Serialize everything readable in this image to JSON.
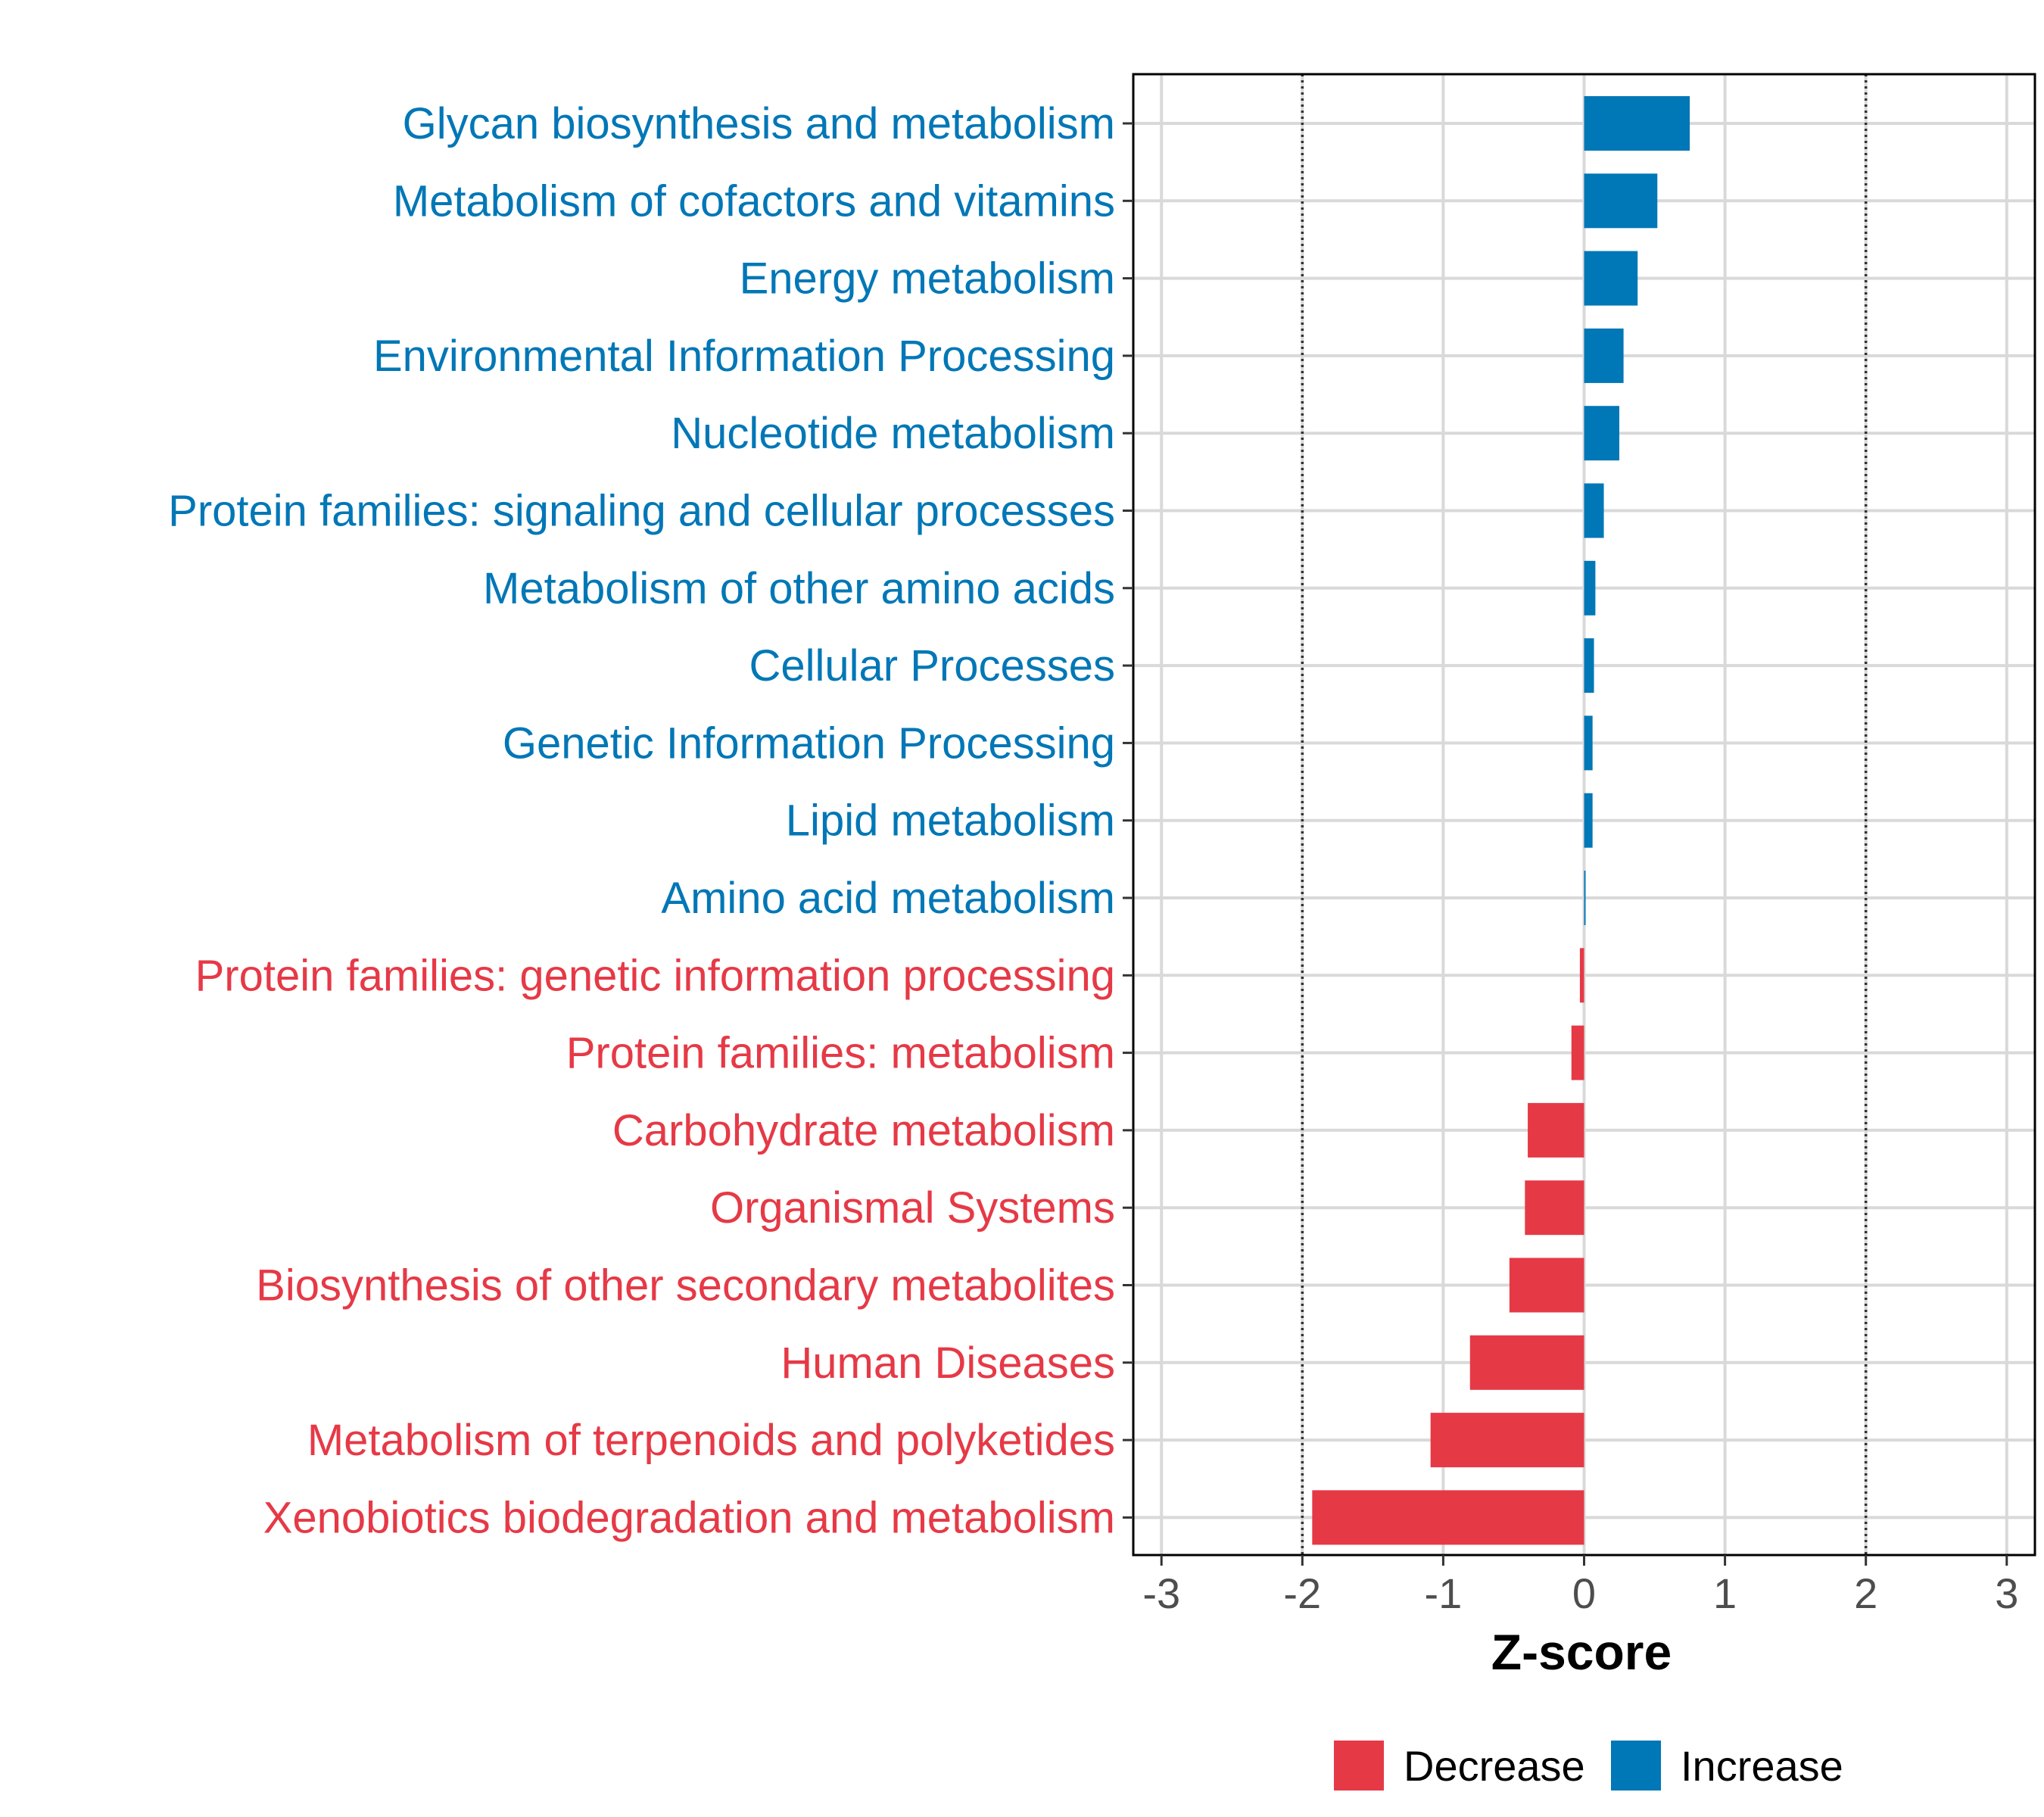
{
  "chart_data": {
    "type": "bar",
    "orientation": "horizontal",
    "title": "",
    "xlabel": "Z-score",
    "ylabel": "",
    "xlim": [
      -3.2,
      3.2
    ],
    "xticks": [
      -3,
      -2,
      -1,
      0,
      1,
      2,
      3
    ],
    "xtick_labels": [
      "-3",
      "-2",
      "-1",
      "0",
      "1",
      "2",
      "3"
    ],
    "reference_lines": [
      -2,
      2
    ],
    "grid": true,
    "legend_position": "bottom",
    "colors": {
      "Decrease": "#E63946",
      "Increase": "#0077B6"
    },
    "legend": [
      {
        "label": "Decrease",
        "color": "#E63946"
      },
      {
        "label": "Increase",
        "color": "#0077B6"
      }
    ],
    "categories": [
      "Glycan biosynthesis and metabolism",
      "Metabolism of cofactors and vitamins",
      "Energy metabolism",
      "Environmental Information Processing",
      "Nucleotide metabolism",
      "Protein families: signaling and cellular processes",
      "Metabolism of other amino acids",
      "Cellular Processes",
      "Genetic Information Processing",
      "Lipid metabolism",
      "Amino acid metabolism",
      "Protein families: genetic information processing",
      "Protein families: metabolism",
      "Carbohydrate metabolism",
      "Organismal Systems",
      "Biosynthesis of other secondary metabolites",
      "Human Diseases",
      "Metabolism of terpenoids and polyketides",
      "Xenobiotics biodegradation and metabolism"
    ],
    "values": [
      0.75,
      0.52,
      0.38,
      0.28,
      0.25,
      0.14,
      0.08,
      0.07,
      0.06,
      0.06,
      0.01,
      -0.03,
      -0.09,
      -0.4,
      -0.42,
      -0.53,
      -0.81,
      -1.09,
      -1.93
    ],
    "groups": [
      "Increase",
      "Increase",
      "Increase",
      "Increase",
      "Increase",
      "Increase",
      "Increase",
      "Increase",
      "Increase",
      "Increase",
      "Increase",
      "Decrease",
      "Decrease",
      "Decrease",
      "Decrease",
      "Decrease",
      "Decrease",
      "Decrease",
      "Decrease"
    ]
  }
}
